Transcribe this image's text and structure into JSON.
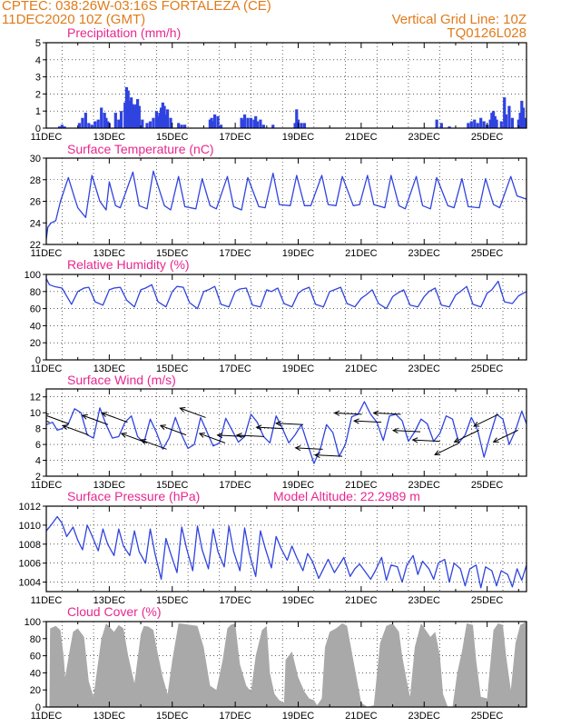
{
  "header": {
    "line1_left": "CPTEC:    038:26W-03:16S  FORTALEZA (CE)",
    "line2_left": "11DEC2020 10Z (GMT)",
    "line1_right": "Vertical Grid Line: 10Z",
    "line2_right": "TQ0126L028"
  },
  "colors": {
    "header": "#e07b1a",
    "title": "#e8278f",
    "line": "#2f43e0",
    "bar": "#2f43e0",
    "cloud": "#a9a9a9",
    "arrow": "#000000"
  },
  "x_axis": {
    "ticks": [
      "11DEC",
      "13DEC",
      "15DEC",
      "17DEC",
      "19DEC",
      "21DEC",
      "23DEC",
      "25DEC"
    ],
    "range_days": [
      0,
      15.25
    ]
  },
  "chart_data": [
    {
      "type": "bar",
      "title": "Precipitation (mm/h)",
      "ylim": [
        0,
        5
      ],
      "yticks": [
        "0",
        "1",
        "2",
        "3",
        "4",
        "5"
      ],
      "grid": true,
      "x_days": [
        0.42,
        0.5,
        0.58,
        1.05,
        1.15,
        1.25,
        1.35,
        1.45,
        1.55,
        1.65,
        1.75,
        1.85,
        1.9,
        1.95,
        2.0,
        2.2,
        2.3,
        2.38,
        2.5,
        2.55,
        2.6,
        2.65,
        2.7,
        2.75,
        2.8,
        2.85,
        2.9,
        2.95,
        3.05,
        3.2,
        3.3,
        3.4,
        3.5,
        3.55,
        3.6,
        3.65,
        3.7,
        3.75,
        3.8,
        3.85,
        3.95,
        4.2,
        4.3,
        4.4,
        5.2,
        5.25,
        5.3,
        5.35,
        5.45,
        5.55,
        6.2,
        6.25,
        6.3,
        6.4,
        6.5,
        6.6,
        6.65,
        6.7,
        6.8,
        6.9,
        7.2,
        7.9,
        7.95,
        8.0,
        8.1,
        8.2,
        12.4,
        12.55,
        12.8,
        13.4,
        13.5,
        13.6,
        13.7,
        13.8,
        13.9,
        14.0,
        14.1,
        14.15,
        14.2,
        14.25,
        14.3,
        14.45,
        14.55,
        14.6,
        14.7,
        14.8,
        15.0,
        15.05,
        15.1,
        15.15,
        15.2
      ],
      "values": [
        0.1,
        0.2,
        0.1,
        0.3,
        0.6,
        0.9,
        0.3,
        0.2,
        0.4,
        0.5,
        1.2,
        0.9,
        0.6,
        0.4,
        0.3,
        0.9,
        0.5,
        1.0,
        1.5,
        2.4,
        2.2,
        1.6,
        1.8,
        1.4,
        1.3,
        1.4,
        1.7,
        1.3,
        0.5,
        0.3,
        0.4,
        0.6,
        1.0,
        0.7,
        0.9,
        1.2,
        1.5,
        1.3,
        0.8,
        1.1,
        0.6,
        0.3,
        0.2,
        0.2,
        0.5,
        0.6,
        0.4,
        0.8,
        0.7,
        0.2,
        0.6,
        0.5,
        0.8,
        0.6,
        0.6,
        0.5,
        0.7,
        0.4,
        0.5,
        0.2,
        0.2,
        0.3,
        1.1,
        0.5,
        0.3,
        0.3,
        0.5,
        0.3,
        0.1,
        0.3,
        0.4,
        0.5,
        0.3,
        0.6,
        0.4,
        0.2,
        0.5,
        0.9,
        1.0,
        0.7,
        0.5,
        0.4,
        1.8,
        0.8,
        1.3,
        0.6,
        0.5,
        0.9,
        1.6,
        1.2,
        0.6
      ]
    },
    {
      "type": "line",
      "title": "Surface Temperature (nC)",
      "ylim": [
        22,
        30
      ],
      "yticks": [
        "22",
        "24",
        "26",
        "28",
        "30"
      ],
      "grid": true,
      "x_days": [
        0,
        0.05,
        0.15,
        0.3,
        0.45,
        0.7,
        0.9,
        1.0,
        1.25,
        1.45,
        1.7,
        1.9,
        2.0,
        2.2,
        2.35,
        2.75,
        2.95,
        3.2,
        3.4,
        3.75,
        3.95,
        4.2,
        4.4,
        4.75,
        4.95,
        5.2,
        5.4,
        5.75,
        5.95,
        6.2,
        6.4,
        6.75,
        6.95,
        7.2,
        7.4,
        7.75,
        7.95,
        8.2,
        8.4,
        8.75,
        8.95,
        9.2,
        9.4,
        9.75,
        9.95,
        10.2,
        10.4,
        10.75,
        10.95,
        11.2,
        11.4,
        11.75,
        11.95,
        12.2,
        12.4,
        12.75,
        12.95,
        13.2,
        13.4,
        13.75,
        13.95,
        14.2,
        14.4,
        14.75,
        14.95,
        15.25
      ],
      "values": [
        22.5,
        23.6,
        24.0,
        24.2,
        26.0,
        28.2,
        26.3,
        25.4,
        24.5,
        28.4,
        26.0,
        25.2,
        27.8,
        25.6,
        25.4,
        28.7,
        25.6,
        25.3,
        28.8,
        25.6,
        25.2,
        28.3,
        25.5,
        25.3,
        28.1,
        25.6,
        25.3,
        28.3,
        25.5,
        25.2,
        28.2,
        25.5,
        25.4,
        28.6,
        25.7,
        25.6,
        28.4,
        25.6,
        25.6,
        28.4,
        25.7,
        25.6,
        28.3,
        25.6,
        25.7,
        28.4,
        25.7,
        25.4,
        28.4,
        25.6,
        25.3,
        28.3,
        25.6,
        25.3,
        28.2,
        25.6,
        25.4,
        28.1,
        25.5,
        25.4,
        28.1,
        25.7,
        25.4,
        28.3,
        26.5,
        26.2
      ]
    },
    {
      "type": "line",
      "title": "Relative Humidity (%)",
      "ylim": [
        0,
        100
      ],
      "yticks": [
        "0",
        "20",
        "40",
        "60",
        "80",
        "100"
      ],
      "grid": true,
      "x_days": [
        0,
        0.1,
        0.25,
        0.5,
        0.8,
        1.0,
        1.2,
        1.35,
        1.55,
        1.8,
        2.0,
        2.15,
        2.35,
        2.55,
        2.8,
        3.0,
        3.15,
        3.35,
        3.55,
        3.8,
        4.0,
        4.15,
        4.35,
        4.55,
        4.8,
        5.0,
        5.15,
        5.35,
        5.55,
        5.8,
        6.0,
        6.15,
        6.35,
        6.55,
        6.8,
        7.0,
        7.15,
        7.35,
        7.55,
        7.8,
        8.0,
        8.15,
        8.35,
        8.55,
        8.8,
        9.0,
        9.15,
        9.35,
        9.55,
        9.8,
        10.0,
        10.15,
        10.35,
        10.55,
        10.8,
        11.0,
        11.15,
        11.35,
        11.55,
        11.8,
        12.0,
        12.15,
        12.35,
        12.55,
        12.8,
        13.0,
        13.15,
        13.35,
        13.55,
        13.8,
        14.0,
        14.15,
        14.35,
        14.55,
        14.8,
        15.0,
        15.25
      ],
      "values": [
        95,
        88,
        86,
        84,
        65,
        80,
        84,
        85,
        68,
        64,
        82,
        84,
        85,
        70,
        62,
        82,
        84,
        88,
        68,
        62,
        80,
        86,
        85,
        67,
        60,
        80,
        82,
        86,
        65,
        62,
        80,
        83,
        84,
        64,
        62,
        82,
        80,
        84,
        66,
        62,
        78,
        82,
        85,
        65,
        62,
        80,
        82,
        85,
        66,
        62,
        72,
        76,
        82,
        66,
        60,
        74,
        78,
        82,
        64,
        62,
        74,
        80,
        84,
        64,
        62,
        76,
        80,
        86,
        65,
        62,
        78,
        82,
        92,
        68,
        66,
        75,
        80
      ]
    },
    {
      "type": "line",
      "title": "Surface Wind (m/s)",
      "ylim": [
        2,
        13
      ],
      "yticks": [
        "2",
        "4",
        "6",
        "8",
        "10",
        "12"
      ],
      "grid": true,
      "x_days": [
        0,
        0.2,
        0.35,
        0.5,
        0.7,
        0.9,
        1.1,
        1.3,
        1.5,
        1.7,
        1.9,
        2.1,
        2.3,
        2.5,
        2.7,
        2.9,
        3.1,
        3.3,
        3.5,
        3.7,
        3.9,
        4.1,
        4.3,
        4.5,
        4.7,
        4.9,
        5.1,
        5.3,
        5.5,
        5.7,
        5.9,
        6.1,
        6.3,
        6.5,
        6.7,
        6.9,
        7.1,
        7.3,
        7.5,
        7.7,
        7.9,
        8.1,
        8.3,
        8.5,
        8.7,
        8.9,
        9.1,
        9.3,
        9.5,
        9.7,
        9.9,
        10.1,
        10.3,
        10.5,
        10.7,
        10.9,
        11.1,
        11.3,
        11.5,
        11.7,
        11.9,
        12.1,
        12.3,
        12.5,
        12.7,
        12.9,
        13.1,
        13.3,
        13.5,
        13.7,
        13.9,
        14.1,
        14.3,
        14.5,
        14.7,
        14.9,
        15.1,
        15.25
      ],
      "values": [
        8.5,
        8.8,
        7.8,
        8.0,
        8.6,
        10.5,
        10.0,
        7.2,
        6.8,
        10.6,
        8.5,
        6.8,
        7.0,
        8.8,
        9.6,
        7.0,
        6.2,
        9.2,
        7.5,
        5.4,
        6.8,
        9.4,
        7.2,
        5.5,
        6.0,
        9.4,
        7.6,
        5.8,
        6.2,
        9.3,
        7.8,
        6.3,
        7.0,
        9.8,
        8.8,
        7.0,
        6.2,
        9.6,
        8.0,
        6.2,
        7.2,
        8.5,
        6.0,
        3.6,
        5.4,
        8.5,
        7.5,
        4.5,
        6.0,
        9.5,
        9.8,
        11.4,
        9.8,
        8.8,
        6.5,
        9.6,
        9.8,
        9.0,
        6.4,
        7.6,
        9.2,
        8.6,
        6.4,
        7.4,
        9.6,
        9.2,
        6.2,
        7.2,
        9.4,
        7.8,
        4.4,
        7.2,
        9.8,
        9.2,
        6.0,
        7.8,
        10.2,
        8.6
      ]
    },
    {
      "type": "line",
      "title": "Surface Pressure (hPa)",
      "annotation": "Model Altitude: 22.2989 m",
      "ylim": [
        1003,
        1012
      ],
      "yticks": [
        "1004",
        "1006",
        "1008",
        "1010",
        "1012"
      ],
      "grid": true,
      "x_days": [
        0,
        0.15,
        0.35,
        0.5,
        0.65,
        0.85,
        1.0,
        1.15,
        1.3,
        1.45,
        1.65,
        1.8,
        1.95,
        2.15,
        2.3,
        2.45,
        2.65,
        2.8,
        2.95,
        3.15,
        3.3,
        3.45,
        3.65,
        3.8,
        3.95,
        4.15,
        4.3,
        4.45,
        4.65,
        4.8,
        4.95,
        5.15,
        5.3,
        5.45,
        5.65,
        5.8,
        5.95,
        6.15,
        6.3,
        6.45,
        6.65,
        6.8,
        6.95,
        7.15,
        7.3,
        7.45,
        7.65,
        7.8,
        7.95,
        8.15,
        8.3,
        8.45,
        8.65,
        8.8,
        8.95,
        9.15,
        9.3,
        9.45,
        9.65,
        9.8,
        9.95,
        10.15,
        10.3,
        10.45,
        10.65,
        10.8,
        10.95,
        11.15,
        11.3,
        11.45,
        11.65,
        11.8,
        11.95,
        12.15,
        12.3,
        12.45,
        12.65,
        12.8,
        12.95,
        13.15,
        13.3,
        13.45,
        13.65,
        13.8,
        13.95,
        14.15,
        14.3,
        14.45,
        14.65,
        14.8,
        14.95,
        15.1,
        15.25
      ],
      "values": [
        1009.4,
        1010.0,
        1010.9,
        1010.2,
        1008.8,
        1009.8,
        1008.4,
        1007.4,
        1010.0,
        1008.9,
        1007.3,
        1009.6,
        1008.0,
        1006.8,
        1009.6,
        1007.8,
        1006.8,
        1009.4,
        1007.2,
        1006.0,
        1009.6,
        1007.0,
        1004.3,
        1008.6,
        1007.0,
        1005.0,
        1009.8,
        1007.6,
        1005.2,
        1009.9,
        1007.4,
        1005.4,
        1009.6,
        1007.2,
        1005.6,
        1009.9,
        1007.2,
        1005.2,
        1009.7,
        1007.0,
        1004.6,
        1009.4,
        1007.6,
        1005.5,
        1008.8,
        1007.6,
        1006.3,
        1007.8,
        1006.6,
        1005.2,
        1007.0,
        1006.2,
        1004.4,
        1005.4,
        1006.4,
        1005.0,
        1005.8,
        1006.6,
        1004.6,
        1005.4,
        1005.9,
        1005.0,
        1004.3,
        1005.2,
        1006.6,
        1004.2,
        1005.8,
        1005.6,
        1004.0,
        1005.8,
        1006.8,
        1004.8,
        1006.2,
        1005.4,
        1004.3,
        1006.0,
        1006.4,
        1004.0,
        1006.0,
        1005.4,
        1003.6,
        1005.4,
        1005.8,
        1003.4,
        1005.6,
        1005.2,
        1003.6,
        1005.2,
        1004.8,
        1003.5,
        1005.4,
        1004.2,
        1005.8
      ]
    },
    {
      "type": "area",
      "title": "Cloud Cover (%)",
      "ylim": [
        0,
        100
      ],
      "yticks": [
        "0",
        "20",
        "40",
        "60",
        "80",
        "100"
      ],
      "grid": true,
      "x_days": [
        0,
        0.1,
        0.12,
        0.3,
        0.45,
        0.55,
        0.6,
        0.75,
        0.85,
        1.0,
        1.2,
        1.35,
        1.5,
        1.6,
        1.75,
        1.9,
        2.0,
        2.15,
        2.3,
        2.45,
        2.6,
        2.8,
        3.0,
        3.1,
        3.25,
        3.4,
        3.5,
        3.7,
        3.85,
        4.0,
        4.2,
        4.4,
        4.6,
        4.8,
        5.0,
        5.2,
        5.4,
        5.6,
        5.75,
        5.85,
        6.0,
        6.15,
        6.35,
        6.5,
        6.65,
        6.85,
        7.0,
        7.1,
        7.25,
        7.4,
        7.55,
        7.6,
        7.8,
        8.0,
        8.2,
        8.35,
        8.5,
        8.6,
        8.75,
        8.85,
        9.0,
        9.2,
        9.4,
        9.55,
        9.75,
        10.0,
        10.2,
        10.4,
        10.6,
        10.8,
        11.0,
        11.2,
        11.3,
        11.45,
        11.55,
        11.7,
        11.9,
        12.05,
        12.2,
        12.35,
        12.5,
        12.6,
        12.75,
        12.9,
        13.05,
        13.2,
        13.35,
        13.55,
        13.65,
        13.8,
        14.0,
        14.2,
        14.35,
        14.5,
        14.6,
        14.75,
        14.9,
        15.05,
        15.25
      ],
      "values": [
        0,
        0,
        92,
        95,
        90,
        60,
        35,
        68,
        88,
        92,
        82,
        30,
        12,
        40,
        80,
        98,
        94,
        88,
        96,
        92,
        60,
        28,
        85,
        95,
        94,
        90,
        70,
        35,
        15,
        55,
        98,
        97,
        96,
        95,
        70,
        25,
        20,
        55,
        92,
        96,
        98,
        50,
        25,
        18,
        60,
        90,
        95,
        40,
        15,
        8,
        5,
        55,
        65,
        35,
        18,
        10,
        8,
        2,
        10,
        70,
        88,
        92,
        98,
        95,
        55,
        5,
        0,
        2,
        75,
        95,
        98,
        88,
        60,
        30,
        12,
        70,
        98,
        90,
        82,
        88,
        60,
        15,
        0,
        0,
        40,
        65,
        98,
        96,
        55,
        12,
        10,
        90,
        98,
        96,
        60,
        20,
        75,
        96,
        100
      ]
    }
  ]
}
